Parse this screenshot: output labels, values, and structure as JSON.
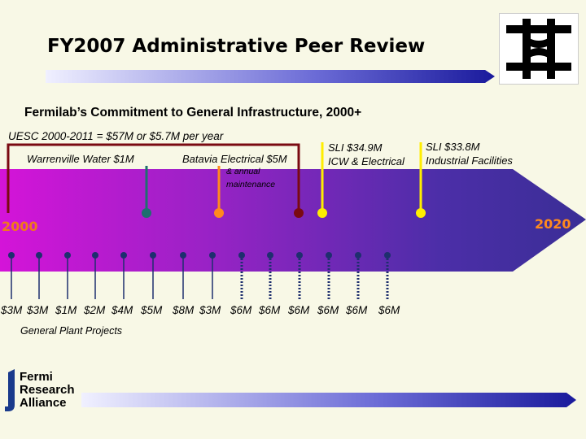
{
  "title": "FY2007 Administrative Peer Review",
  "subtitle": "Fermilab’s Commitment to General Infrastructure, 2000+",
  "uesc_label": "UESC 2000-2011 = $57M or $5.7M per year",
  "annotations": {
    "warrenville": "Warrenville Water $1M",
    "batavia": "Batavia Electrical $5M",
    "batavia_sub1": "& annual",
    "batavia_sub2": "maintenance",
    "sli_icw_line1": "SLI $34.9M",
    "sli_icw_line2": "ICW & Electrical",
    "sli_ind_line1": "SLI $33.8M",
    "sli_ind_line2": "Industrial Facilities"
  },
  "timeline": {
    "start_year": "2000",
    "end_year": "2020"
  },
  "fundings": [
    "$3M",
    "$3M",
    "$1M",
    "$2M",
    "$4M",
    "$5M",
    "$8M",
    "$3M",
    "$6M",
    "$6M",
    "$6M",
    "$6M",
    "$6M",
    "$6M"
  ],
  "general_plant_label": "General Plant Projects",
  "footer_logo": {
    "line1": "Fermi",
    "line2": "Research",
    "line3": "Alliance"
  },
  "colors": {
    "arrow_start": "#d010d8",
    "arrow_end": "#3a2ea0",
    "warrenville_marker": "#1f6f6f",
    "batavia_marker": "#ff8a1e",
    "uesc_marker": "#7a0a12",
    "sli_marker": "#ffee00",
    "tick_color": "#1e2f6e"
  }
}
